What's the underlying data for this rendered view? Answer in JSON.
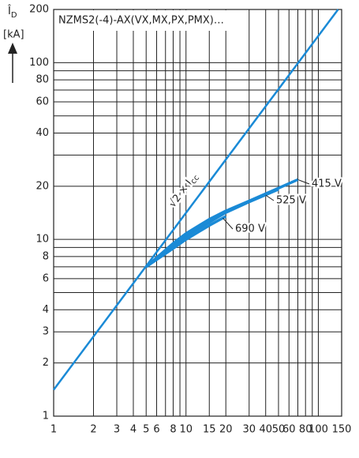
{
  "chart_data": {
    "type": "line",
    "title": "NZMS2(-4)-AX(VX,MX,PX,PMX)…",
    "y_label": "Î",
    "y_label_sub": "D",
    "y_unit": "[kA]",
    "xscale": "log",
    "yscale": "log",
    "grid": true,
    "xlim": [
      1,
      150
    ],
    "ylim": [
      1,
      200
    ],
    "xticks": [
      1,
      2,
      3,
      4,
      5,
      6,
      8,
      10,
      15,
      20,
      30,
      40,
      50,
      60,
      80,
      100,
      150
    ],
    "yticks": [
      1,
      2,
      3,
      4,
      6,
      8,
      10,
      20,
      40,
      60,
      80,
      100,
      200
    ],
    "xminor": [
      7,
      9,
      70,
      90
    ],
    "yminor": [
      5,
      7,
      9,
      30,
      50,
      70,
      90
    ],
    "series": [
      {
        "name": "√2 × I",
        "name_sub": "cc",
        "color": "#1a8ad6",
        "x": [
          1,
          141
        ],
        "values": [
          1.41,
          200
        ]
      },
      {
        "name": "415 V",
        "color": "#1a8ad6",
        "x": [
          5,
          8,
          10,
          15,
          20,
          30,
          50,
          70
        ],
        "values": [
          7,
          9.5,
          10.8,
          13,
          14.5,
          16.5,
          19.5,
          21.8
        ]
      },
      {
        "name": "525 V",
        "color": "#1a8ad6",
        "x": [
          5,
          8,
          10,
          15,
          20,
          30,
          50
        ],
        "values": [
          7,
          9.2,
          10.4,
          12.5,
          14.2,
          16.3,
          19.2
        ]
      },
      {
        "name": "690 V",
        "color": "#1a8ad6",
        "x": [
          5,
          8,
          10,
          15,
          20
        ],
        "values": [
          7,
          8.9,
          10,
          12,
          13.5
        ]
      }
    ]
  }
}
